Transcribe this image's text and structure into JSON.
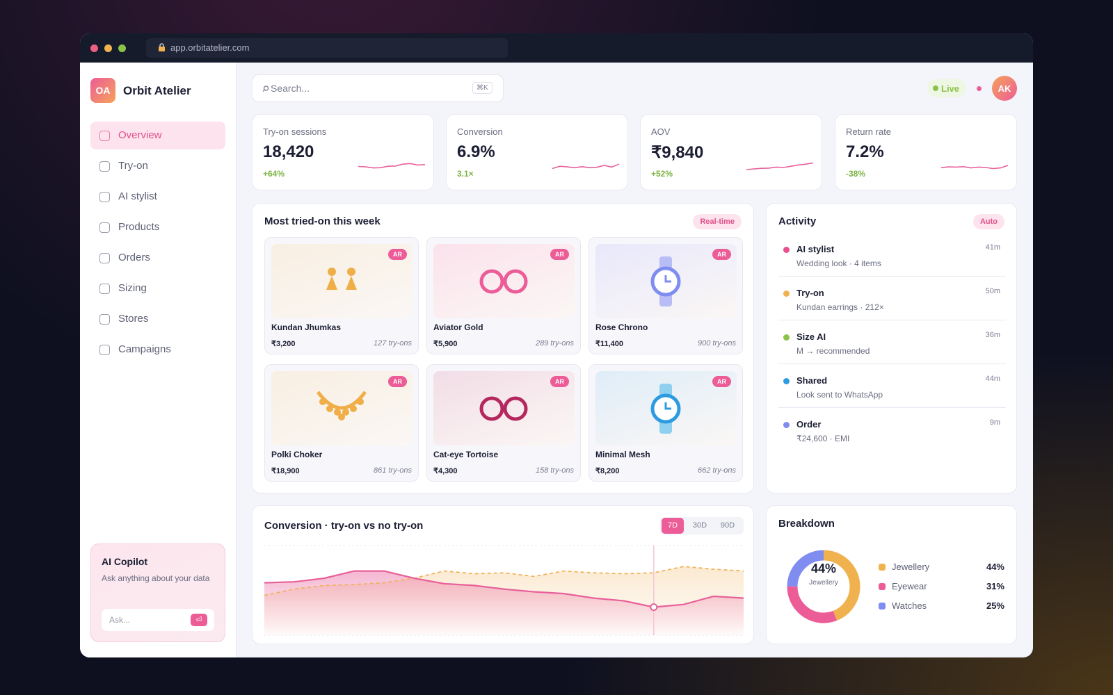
{
  "browser": {
    "url": "app.orbitatelier.com"
  },
  "sidebar": {
    "logo": "OA",
    "brand": "Orbit Atelier",
    "nav": [
      "Overview",
      "Try-on",
      "AI stylist",
      "Products",
      "Orders",
      "Sizing",
      "Stores",
      "Campaigns"
    ]
  },
  "copilot": {
    "title": "AI Copilot",
    "text": "Ask anything about your data",
    "placeholder": "Ask...",
    "button": "⏎"
  },
  "topbar": {
    "search": "Search...",
    "shortcut": "⌘K",
    "status": "Live",
    "avatar": "AK"
  },
  "kpis": [
    {
      "label": "Try-on sessions",
      "value": "18,420",
      "delta": "+64%",
      "trend": [
        2.5,
        2.3,
        1.8,
        1.9,
        2.6,
        2.7,
        3.6,
        3.9,
        3.2,
        3.4
      ]
    },
    {
      "label": "Conversion",
      "value": "6.9%",
      "delta": "3.1×",
      "trend": [
        1.5,
        2.6,
        2.3,
        1.9,
        2.4,
        1.9,
        2.1,
        3.0,
        2.2,
        3.6
      ]
    },
    {
      "label": "AOV",
      "value": "₹9,840",
      "delta": "+52%",
      "trend": [
        1.0,
        1.3,
        1.6,
        1.7,
        2.2,
        2.0,
        2.6,
        3.2,
        3.6,
        4.2
      ]
    },
    {
      "label": "Return rate",
      "value": "7.2%",
      "delta": "-38%",
      "trend": [
        1.9,
        2.3,
        2.2,
        2.4,
        1.8,
        2.2,
        2.0,
        1.5,
        1.8,
        3.0
      ]
    }
  ],
  "products": {
    "title": "Most tried-on this week",
    "badge": "Real-time",
    "items": [
      {
        "name": "Kundan Jhumkas",
        "price": "₹3,200",
        "tries": "127 try-ons",
        "tag": "AR"
      },
      {
        "name": "Aviator Gold",
        "price": "₹5,900",
        "tries": "289 try-ons",
        "tag": "AR"
      },
      {
        "name": "Rose Chrono",
        "price": "₹11,400",
        "tries": "900 try-ons",
        "tag": "AR"
      },
      {
        "name": "Polki Choker",
        "price": "₹18,900",
        "tries": "861 try-ons",
        "tag": "AR"
      },
      {
        "name": "Cat-eye Tortoise",
        "price": "₹4,300",
        "tries": "158 try-ons",
        "tag": "AR"
      },
      {
        "name": "Minimal Mesh",
        "price": "₹8,200",
        "tries": "662 try-ons",
        "tag": "AR"
      }
    ]
  },
  "activity": {
    "title": "Activity",
    "badge": "Auto",
    "items": [
      {
        "title": "AI stylist",
        "detail": "Wedding look · 4 items",
        "time": "41m",
        "color": "#e8508e"
      },
      {
        "title": "Try-on",
        "detail": "Kundan earrings · 212×",
        "time": "50m",
        "color": "#f0b24f"
      },
      {
        "title": "Size AI",
        "detail": "M → recommended",
        "time": "36m",
        "color": "#8bc34a"
      },
      {
        "title": "Shared",
        "detail": "Look sent to WhatsApp",
        "time": "44m",
        "color": "#2e9be0"
      },
      {
        "title": "Order",
        "detail": "₹24,600 · EMI",
        "time": "9m",
        "color": "#7f8cf0"
      }
    ]
  },
  "conversion": {
    "title": "Conversion · try-on vs no try-on",
    "ranges": [
      "7D",
      "30D",
      "90D"
    ],
    "series": [
      {
        "color": "#e8609a",
        "values": [
          55,
          56,
          60,
          68,
          68,
          60,
          54,
          52,
          48,
          45,
          43,
          38,
          35,
          28,
          31,
          40,
          38
        ]
      },
      {
        "color": "#f0b25a",
        "values": [
          41,
          48,
          52,
          53,
          55,
          60,
          68,
          65,
          66,
          62,
          68,
          66,
          65,
          66,
          73,
          70,
          68
        ]
      }
    ]
  },
  "breakdown": {
    "title": "Breakdown",
    "names": [
      "Jewellery",
      "Eyewear",
      "Watches"
    ],
    "values": [
      44,
      31,
      25
    ],
    "value_labels": [
      "44%",
      "31%",
      "25%"
    ],
    "colors": [
      "#f0b24f",
      "#ec5c97",
      "#7f8cf0"
    ]
  }
}
